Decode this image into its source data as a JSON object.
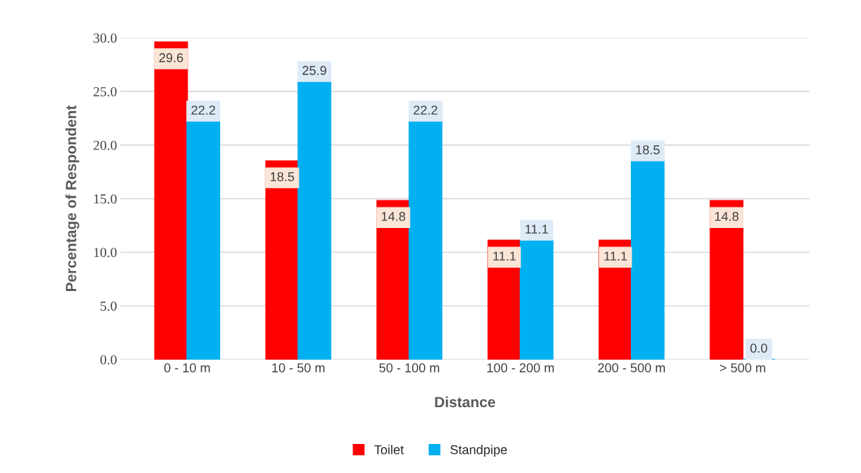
{
  "chart_data": {
    "type": "bar",
    "xlabel": "Distance",
    "ylabel": "Percentage of Respondent",
    "categories": [
      "0 - 10 m",
      "10 - 50 m",
      "50 - 100 m",
      "100 - 200 m",
      "200 - 500 m",
      "> 500 m"
    ],
    "series": [
      {
        "name": "Toilet",
        "color": "#ff0000",
        "values": [
          29.6,
          18.5,
          14.8,
          11.1,
          11.1,
          14.8
        ],
        "value_labels": [
          "29.6",
          "18.5",
          "14.8",
          "11.1",
          "11.1",
          "14.8"
        ]
      },
      {
        "name": "Standpipe",
        "color": "#00b0f0",
        "values": [
          22.2,
          25.9,
          22.2,
          11.1,
          18.5,
          0
        ],
        "value_labels": [
          "22.2",
          "25.9",
          "22.2",
          "11.1",
          "18.5",
          "0.0"
        ]
      }
    ],
    "ylim": [
      0,
      30
    ],
    "yticks": [
      {
        "value": 0,
        "label": "0.0"
      },
      {
        "value": 5,
        "label": "5.0"
      },
      {
        "value": 10,
        "label": "10.0"
      },
      {
        "value": 15,
        "label": "15.0"
      },
      {
        "value": 20,
        "label": "20.0"
      },
      {
        "value": 25,
        "label": "25.0"
      },
      {
        "value": 30,
        "label": "30.0"
      }
    ],
    "grid": "y",
    "legend": "bottom"
  }
}
